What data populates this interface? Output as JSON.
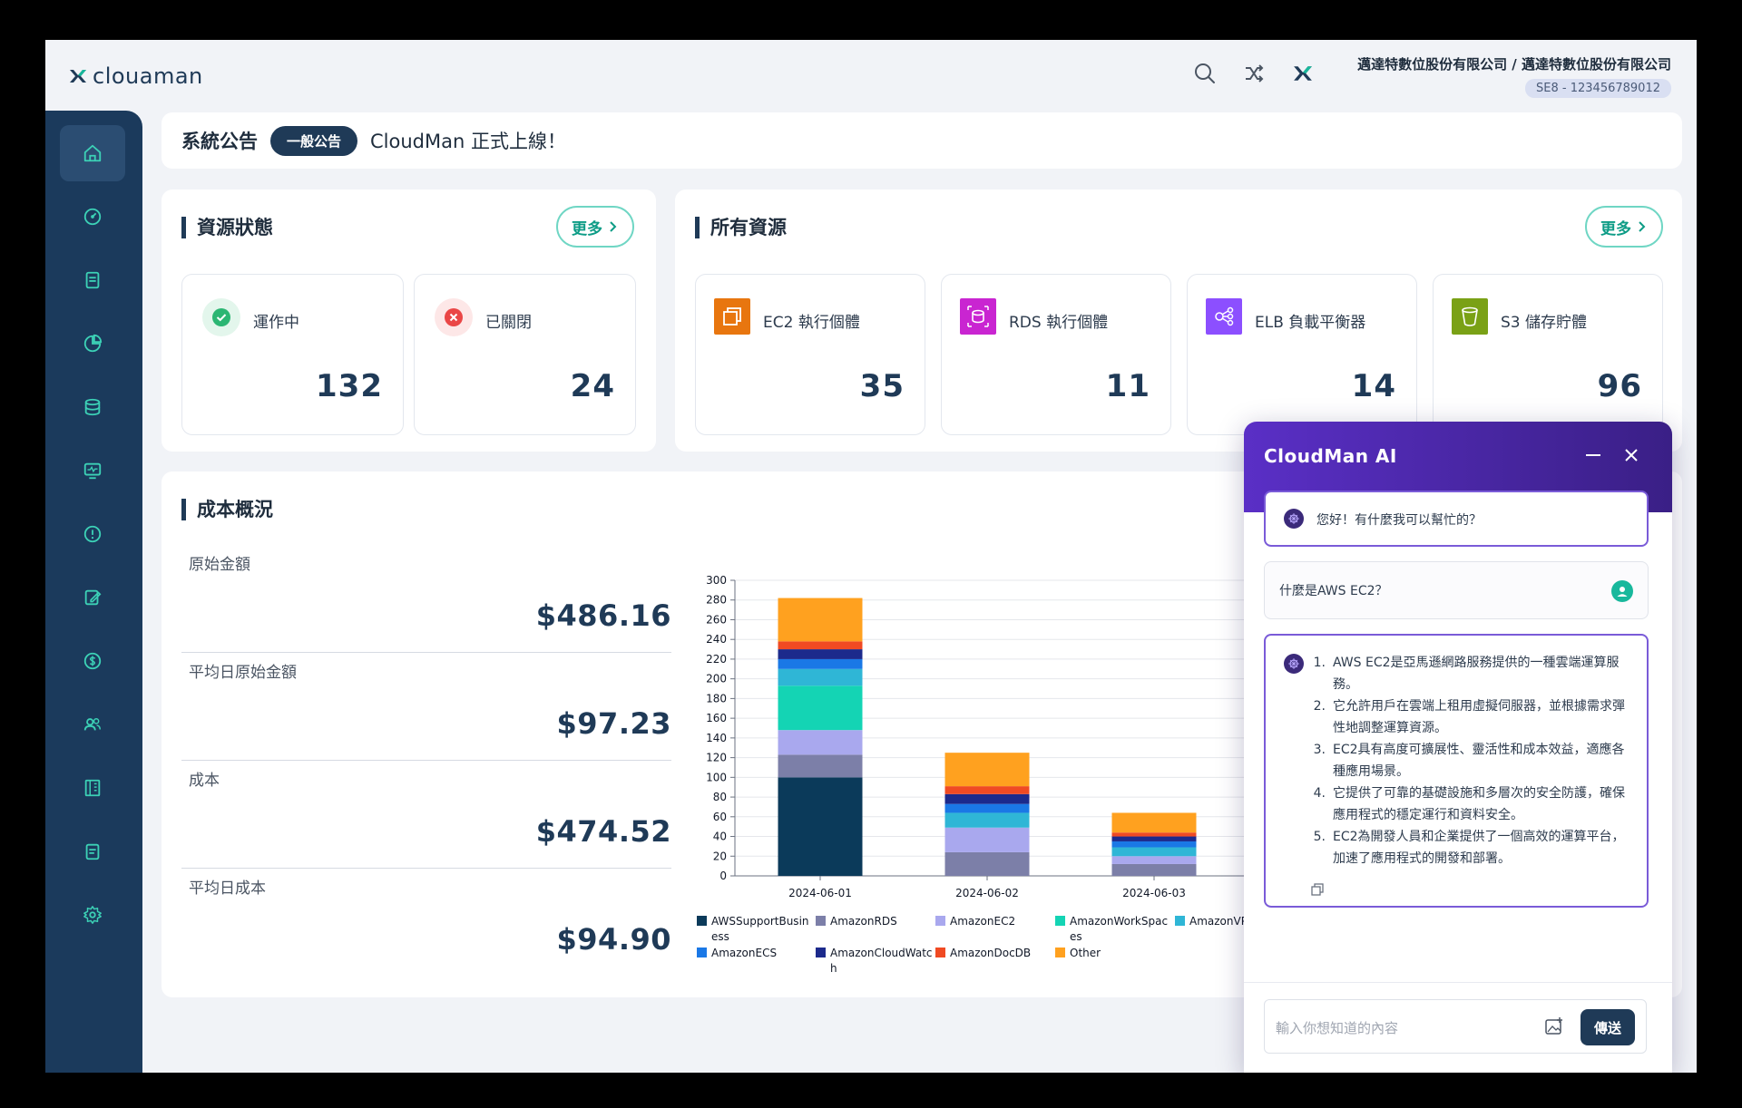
{
  "header": {
    "logo_text": "clouaman",
    "company_name": "邁達特數位股份有限公司 / 邁達特數位股份有限公司",
    "account_id": "SE8 - 123456789012"
  },
  "announcement": {
    "title": "系統公告",
    "tag": "一般公告",
    "text": "CloudMan 正式上線！"
  },
  "resource_status": {
    "title": "資源狀態",
    "more": "更多",
    "running_label": "運作中",
    "running_value": "132",
    "stopped_label": "已關閉",
    "stopped_value": "24"
  },
  "all_resources": {
    "title": "所有資源",
    "more": "更多",
    "items": [
      {
        "label": "EC2 執行個體",
        "value": "35",
        "color": "#e8760f",
        "icon": "ec2-icon"
      },
      {
        "label": "RDS 執行個體",
        "value": "11",
        "color": "#c925d1",
        "icon": "rds-icon"
      },
      {
        "label": "ELB 負載平衡器",
        "value": "14",
        "color": "#8c4fff",
        "icon": "elb-icon"
      },
      {
        "label": "S3 儲存貯體",
        "value": "96",
        "color": "#7aa116",
        "icon": "s3-icon"
      }
    ]
  },
  "cost": {
    "title": "成本概況",
    "rows": [
      {
        "label": "原始金額",
        "value": "$486.16"
      },
      {
        "label": "平均日原始金額",
        "value": "$97.23"
      },
      {
        "label": "成本",
        "value": "$474.52"
      },
      {
        "label": "平均日成本",
        "value": "$94.90"
      }
    ]
  },
  "chart_data": {
    "type": "bar",
    "stacked": true,
    "categories": [
      "2024-06-01",
      "2024-06-02",
      "2024-06-03"
    ],
    "ylim": [
      0,
      300
    ],
    "yticks": [
      0,
      20,
      40,
      60,
      80,
      100,
      120,
      140,
      160,
      180,
      200,
      220,
      240,
      260,
      280,
      300
    ],
    "series": [
      {
        "name": "AWSSupportBusiness",
        "color": "#0b3a5a",
        "values": [
          100,
          0,
          0
        ]
      },
      {
        "name": "AmazonRDS",
        "color": "#7c7fa8",
        "values": [
          23,
          24,
          12
        ]
      },
      {
        "name": "AmazonEC2",
        "color": "#a9a8ee",
        "values": [
          25,
          25,
          8
        ]
      },
      {
        "name": "AmazonWorkSpaces",
        "color": "#14d4b4",
        "values": [
          45,
          0,
          0
        ]
      },
      {
        "name": "AmazonVPC",
        "color": "#2fb6d6",
        "values": [
          17,
          15,
          9
        ]
      },
      {
        "name": "AmazonECS",
        "color": "#1a78e6",
        "values": [
          10,
          9,
          6
        ]
      },
      {
        "name": "AmazonCloudWatch",
        "color": "#1c2a8c",
        "values": [
          10,
          10,
          5
        ]
      },
      {
        "name": "AmazonDocDB",
        "color": "#f04a23",
        "values": [
          8,
          8,
          4
        ]
      },
      {
        "name": "Other",
        "color": "#ffa11f",
        "values": [
          44,
          34,
          20
        ]
      }
    ],
    "legend": [
      {
        "name": "AWSSupportBusin",
        "name2": "ess",
        "color": "#0b3a5a"
      },
      {
        "name": "AmazonRDS",
        "name2": "",
        "color": "#7c7fa8"
      },
      {
        "name": "AmazonEC2",
        "name2": "",
        "color": "#a9a8ee"
      },
      {
        "name": "AmazonWorkSpac",
        "name2": "es",
        "color": "#14d4b4"
      },
      {
        "name": "AmazonVP",
        "name2": "",
        "color": "#2fb6d6"
      },
      {
        "name": "AmazonECS",
        "name2": "",
        "color": "#1a78e6"
      },
      {
        "name": "AmazonCloudWatc",
        "name2": "h",
        "color": "#1c2a8c"
      },
      {
        "name": "AmazonDocDB",
        "name2": "",
        "color": "#f04a23"
      },
      {
        "name": "Other",
        "name2": "",
        "color": "#ffa11f"
      }
    ]
  },
  "chat": {
    "title": "CloudMan AI",
    "greeting": "您好！有什麼我可以幫忙的？",
    "user_message": "什麼是AWS EC2？",
    "answer": [
      {
        "num": "1.",
        "text": "AWS EC2是亞馬遜網路服務提供的一種雲端運算服務。"
      },
      {
        "num": "2.",
        "text": "它允許用戶在雲端上租用虛擬伺服器，並根據需求彈性地調整運算資源。"
      },
      {
        "num": "3.",
        "text": "EC2具有高度可擴展性、靈活性和成本效益，適應各種應用場景。"
      },
      {
        "num": "4.",
        "text": "它提供了可靠的基礎設施和多層次的安全防護，確保應用程式的穩定運行和資料安全。"
      },
      {
        "num": "5.",
        "text": "EC2為開發人員和企業提供了一個高效的運算平台，加速了應用程式的開發和部署。"
      }
    ],
    "input_placeholder": "輸入你想知道的內容",
    "send_label": "傳送"
  },
  "sidebar": {
    "icons": [
      "home-icon",
      "dashboard-icon",
      "document-icon",
      "pie-chart-icon",
      "database-icon",
      "monitor-icon",
      "alert-icon",
      "edit-icon",
      "dollar-icon",
      "users-icon",
      "building-icon",
      "clipboard-icon",
      "settings-icon"
    ]
  }
}
